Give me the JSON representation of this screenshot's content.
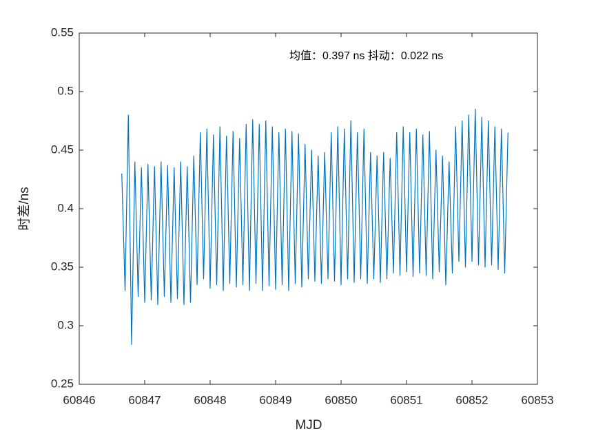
{
  "chart_data": {
    "type": "line",
    "x_label": "MJD",
    "y_label": "时差/ns",
    "annotation": "均值：0.397 ns  抖动：0.022 ns",
    "color": "#0072BD",
    "x": [
      60846.65,
      60846.7,
      60846.75,
      60846.8,
      60846.85,
      60846.9,
      60846.95,
      60847,
      60847.05,
      60847.1,
      60847.15,
      60847.2,
      60847.25,
      60847.3,
      60847.35,
      60847.4,
      60847.45,
      60847.5,
      60847.55,
      60847.6,
      60847.65,
      60847.7,
      60847.75,
      60847.8,
      60847.85,
      60847.9,
      60847.95,
      60848,
      60848.05,
      60848.1,
      60848.15,
      60848.2,
      60848.25,
      60848.3,
      60848.35,
      60848.4,
      60848.45,
      60848.5,
      60848.55,
      60848.6,
      60848.65,
      60848.7,
      60848.75,
      60848.8,
      60848.85,
      60848.9,
      60848.95,
      60849,
      60849.05,
      60849.1,
      60849.15,
      60849.2,
      60849.25,
      60849.3,
      60849.35,
      60849.4,
      60849.45,
      60849.5,
      60849.55,
      60849.6,
      60849.65,
      60849.7,
      60849.75,
      60849.8,
      60849.85,
      60849.9,
      60849.95,
      60850,
      60850.05,
      60850.1,
      60850.15,
      60850.2,
      60850.25,
      60850.3,
      60850.35,
      60850.4,
      60850.45,
      60850.5,
      60850.55,
      60850.6,
      60850.65,
      60850.7,
      60850.75,
      60850.8,
      60850.85,
      60850.9,
      60850.95,
      60851,
      60851.05,
      60851.1,
      60851.15,
      60851.2,
      60851.25,
      60851.3,
      60851.35,
      60851.4,
      60851.45,
      60851.5,
      60851.55,
      60851.6,
      60851.65,
      60851.7,
      60851.75,
      60851.8,
      60851.85,
      60851.9,
      60851.95,
      60852,
      60852.05,
      60852.1,
      60852.15,
      60852.2,
      60852.25,
      60852.3,
      60852.35,
      60852.4,
      60852.45,
      60852.5,
      60852.55
    ],
    "values": [
      0.43,
      0.33,
      0.48,
      0.284,
      0.44,
      0.325,
      0.435,
      0.32,
      0.438,
      0.322,
      0.436,
      0.318,
      0.44,
      0.325,
      0.437,
      0.32,
      0.435,
      0.323,
      0.44,
      0.318,
      0.436,
      0.32,
      0.445,
      0.335,
      0.465,
      0.34,
      0.468,
      0.332,
      0.463,
      0.335,
      0.47,
      0.33,
      0.462,
      0.336,
      0.466,
      0.333,
      0.46,
      0.335,
      0.472,
      0.33,
      0.476,
      0.336,
      0.472,
      0.33,
      0.475,
      0.334,
      0.47,
      0.331,
      0.465,
      0.335,
      0.468,
      0.33,
      0.466,
      0.336,
      0.464,
      0.333,
      0.455,
      0.34,
      0.45,
      0.338,
      0.445,
      0.336,
      0.448,
      0.34,
      0.465,
      0.338,
      0.47,
      0.335,
      0.468,
      0.34,
      0.475,
      0.337,
      0.465,
      0.34,
      0.468,
      0.336,
      0.448,
      0.34,
      0.445,
      0.337,
      0.448,
      0.34,
      0.443,
      0.345,
      0.465,
      0.343,
      0.47,
      0.346,
      0.465,
      0.342,
      0.468,
      0.345,
      0.463,
      0.343,
      0.466,
      0.34,
      0.45,
      0.346,
      0.445,
      0.335,
      0.44,
      0.345,
      0.47,
      0.355,
      0.475,
      0.35,
      0.48,
      0.355,
      0.485,
      0.352,
      0.478,
      0.35,
      0.475,
      0.352,
      0.47,
      0.348,
      0.468,
      0.345,
      0.465
    ],
    "xlim": [
      60846,
      60853
    ],
    "xticks": [
      60846,
      60847,
      60848,
      60849,
      60850,
      60851,
      60852,
      60853
    ],
    "ylim": [
      0.25,
      0.55
    ],
    "yticks": [
      0.25,
      0.3,
      0.35,
      0.4,
      0.45,
      0.5,
      0.55
    ]
  }
}
